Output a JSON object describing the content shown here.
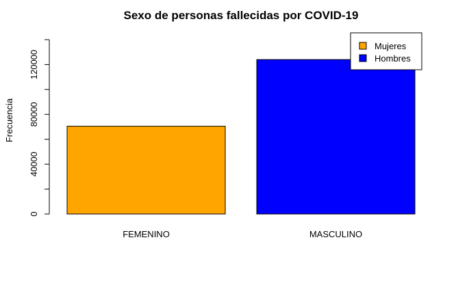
{
  "chart_data": {
    "type": "bar",
    "title": "Sexo de personas fallecidas por COVID-19",
    "xlabel": "",
    "ylabel": "Frecuencia",
    "categories": [
      "FEMENINO",
      "MASCULINO"
    ],
    "values": [
      70500,
      124000
    ],
    "colors": [
      "#FFA500",
      "#0000FF"
    ],
    "ylim": [
      0,
      140000
    ],
    "yticks": [
      0,
      40000,
      80000,
      120000
    ],
    "ytick_labels": [
      "0",
      "40000",
      "80000",
      "120000"
    ],
    "grid": false,
    "legend": {
      "position": "top-right",
      "entries": [
        {
          "label": "Mujeres",
          "color": "#FFA500"
        },
        {
          "label": "Hombres",
          "color": "#0000FF"
        }
      ]
    }
  }
}
